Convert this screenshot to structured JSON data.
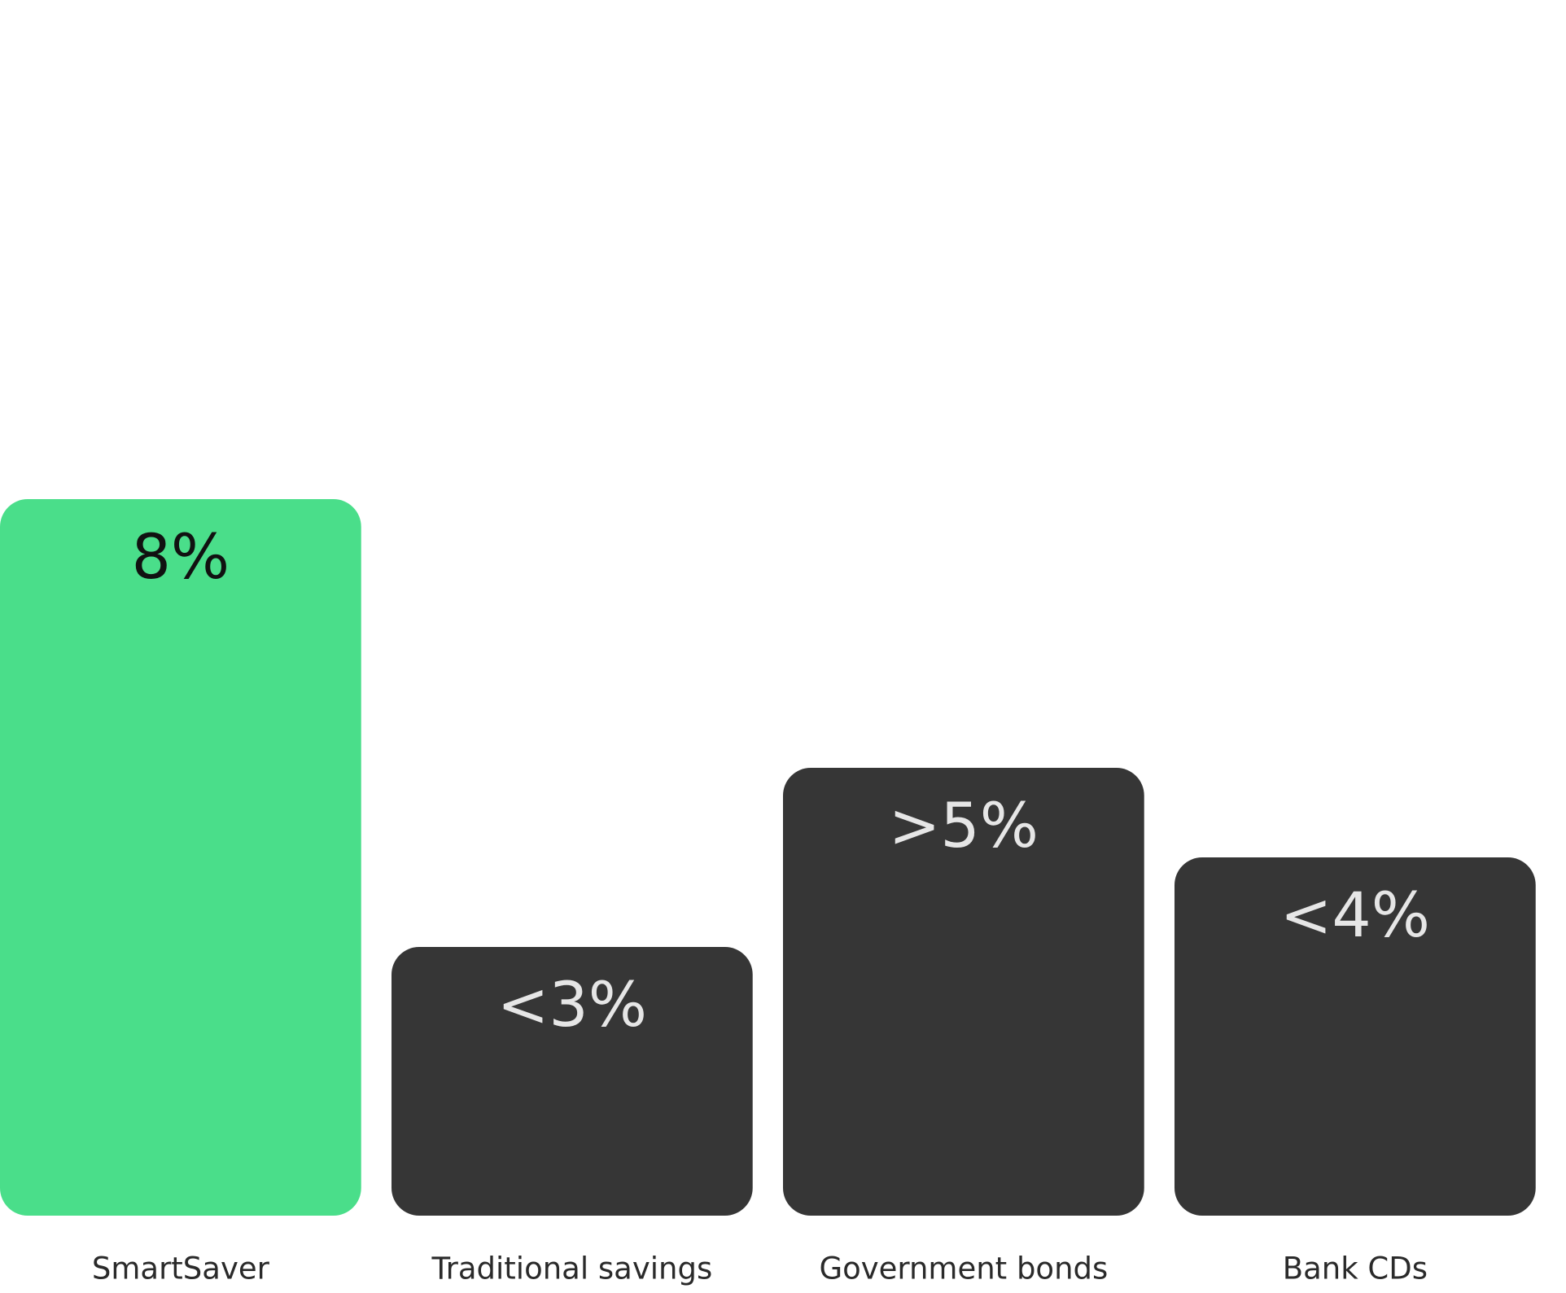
{
  "chart_data": {
    "type": "bar",
    "categories": [
      "SmartSaver",
      "Traditional savings",
      "Government bonds",
      "Bank CDs"
    ],
    "values": [
      8,
      3,
      5,
      4
    ],
    "value_labels": [
      "8%",
      "<3%",
      ">5%",
      "<4%"
    ],
    "colors": [
      "#4ade8a",
      "#363636",
      "#363636",
      "#363636"
    ],
    "value_label_colors": [
      "#111111",
      "#e6e6e6",
      "#e6e6e6",
      "#e6e6e6"
    ]
  }
}
